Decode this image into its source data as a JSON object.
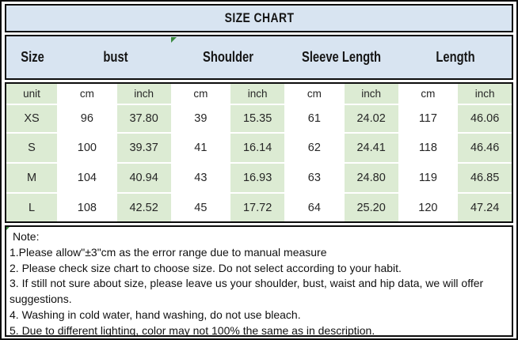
{
  "title": "SIZE CHART",
  "header": {
    "labels": [
      "Size",
      "bust",
      "Shoulder",
      "Sleeve Length",
      "Length"
    ]
  },
  "table": {
    "rows": [
      [
        "unit",
        "cm",
        "inch",
        "cm",
        "inch",
        "cm",
        "inch",
        "cm",
        "inch"
      ],
      [
        "XS",
        "96",
        "37.80",
        "39",
        "15.35",
        "61",
        "24.02",
        "117",
        "46.06"
      ],
      [
        "S",
        "100",
        "39.37",
        "41",
        "16.14",
        "62",
        "24.41",
        "118",
        "46.46"
      ],
      [
        "M",
        "104",
        "40.94",
        "43",
        "16.93",
        "63",
        "24.80",
        "119",
        "46.85"
      ],
      [
        "L",
        "108",
        "42.52",
        "45",
        "17.72",
        "64",
        "25.20",
        "120",
        "47.24"
      ]
    ]
  },
  "notes": {
    "heading": "Note:",
    "items": [
      "1.Please allow\"±3\"cm as the error range due to manual measure",
      "2. Please check size chart to choose size. Do not select according to your habit.",
      "3. If still not sure about size, please leave us your shoulder, bust, waist and hip data, we will offer suggestions.",
      "4. Washing in cold water, hand washing, do not use bleach.",
      "5. Due to different lighting, color may not 100% the same as in description."
    ]
  },
  "colors": {
    "header_bg": "#d8e4f1",
    "stripe_green": "#dcebd3",
    "cell_white": "#ffffff",
    "border": "#0c0c0c",
    "marker_green": "#3a8a3f"
  }
}
